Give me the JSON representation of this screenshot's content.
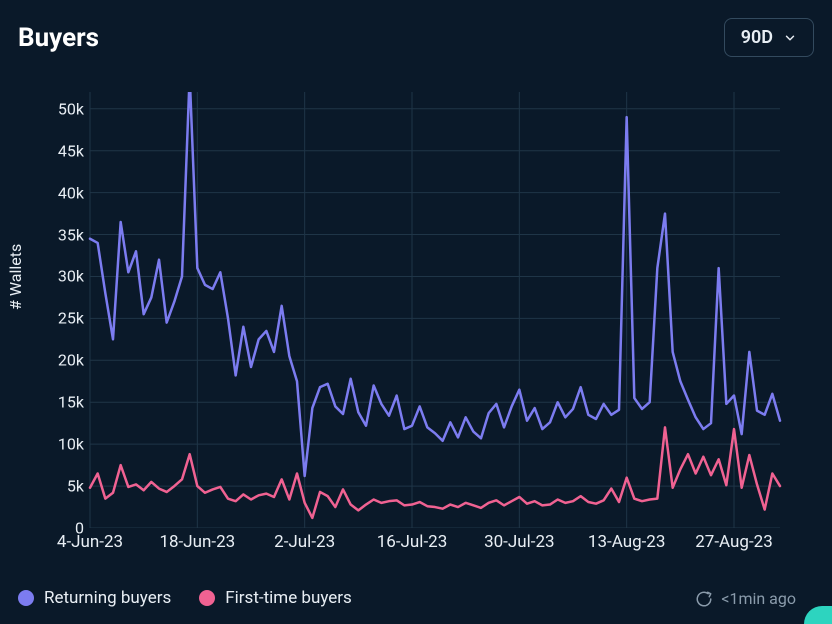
{
  "header": {
    "title": "Buyers",
    "range": "90D"
  },
  "chart": {
    "type": "line",
    "background_color": "#0a1929",
    "grid_color": "#1f3547",
    "axis_color": "#1f3547",
    "y_axis": {
      "label": "# Wallets",
      "min": 0,
      "max": 52000,
      "ticks": [
        0,
        5000,
        10000,
        15000,
        20000,
        25000,
        30000,
        35000,
        40000,
        45000,
        50000
      ],
      "tick_labels": [
        "0",
        "5k",
        "10k",
        "15k",
        "20k",
        "25k",
        "30k",
        "35k",
        "40k",
        "45k",
        "50k"
      ],
      "label_fontsize": 16,
      "tick_fontsize": 16,
      "text_color": "#e8eef4"
    },
    "x_axis": {
      "tick_labels": [
        "4-Jun-23",
        "18-Jun-23",
        "2-Jul-23",
        "16-Jul-23",
        "30-Jul-23",
        "13-Aug-23",
        "27-Aug-23"
      ],
      "tick_positions": [
        0,
        14,
        28,
        42,
        56,
        70,
        84
      ],
      "min": 0,
      "max": 90,
      "tick_fontsize": 17,
      "text_color": "#e8eef4"
    },
    "series": [
      {
        "name": "Returning buyers",
        "color": "#7c7cf0",
        "line_width": 2.5,
        "values": [
          34500,
          34000,
          28000,
          22500,
          36500,
          30500,
          33000,
          25500,
          27500,
          32000,
          24500,
          27000,
          30000,
          54000,
          31000,
          29000,
          28500,
          30500,
          25000,
          18200,
          24000,
          19200,
          22500,
          23500,
          21000,
          26500,
          20500,
          17500,
          6200,
          14300,
          16800,
          17200,
          14500,
          13600,
          17800,
          13800,
          12200,
          17000,
          14800,
          13400,
          15800,
          11800,
          12200,
          14500,
          12000,
          11300,
          10400,
          12600,
          10800,
          13200,
          11500,
          10700,
          13700,
          14800,
          12000,
          14500,
          16500,
          12800,
          14300,
          11800,
          12600,
          15000,
          13200,
          14200,
          16800,
          13500,
          13000,
          14800,
          13500,
          14100,
          49000,
          15500,
          14200,
          15000,
          31000,
          37500,
          21000,
          17500,
          15300,
          13200,
          11800,
          12500,
          31000,
          14800,
          15800,
          11200,
          21000,
          14000,
          13500,
          16000,
          12800
        ]
      },
      {
        "name": "First-time buyers",
        "color": "#f06292",
        "line_width": 2.5,
        "values": [
          4800,
          6500,
          3500,
          4200,
          7500,
          4900,
          5200,
          4500,
          5500,
          4700,
          4300,
          5000,
          5800,
          8800,
          5000,
          4200,
          4600,
          4900,
          3500,
          3200,
          4000,
          3400,
          3900,
          4100,
          3700,
          5800,
          3400,
          6500,
          3000,
          1200,
          4300,
          3800,
          2500,
          4600,
          2800,
          2100,
          2800,
          3400,
          3000,
          3200,
          3300,
          2700,
          2800,
          3100,
          2600,
          2500,
          2300,
          2800,
          2500,
          3000,
          2700,
          2400,
          3000,
          3300,
          2700,
          3200,
          3700,
          2900,
          3200,
          2700,
          2800,
          3400,
          3000,
          3200,
          3800,
          3100,
          2900,
          3300,
          4700,
          3100,
          6000,
          3500,
          3200,
          3400,
          3500,
          12000,
          4800,
          7000,
          8800,
          6500,
          8500,
          6300,
          8200,
          5100,
          11800,
          4800,
          8700,
          5200,
          2200,
          6500,
          5000
        ]
      }
    ]
  },
  "legend": {
    "items": [
      {
        "label": "Returning buyers",
        "color": "#7c7cf0"
      },
      {
        "label": "First-time buyers",
        "color": "#f06292"
      }
    ],
    "fontsize": 17
  },
  "update": {
    "text": "<1min ago",
    "icon_color": "#8a9bab"
  }
}
